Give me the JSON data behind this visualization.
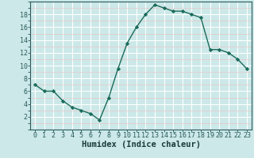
{
  "x": [
    0,
    1,
    2,
    3,
    4,
    5,
    6,
    7,
    8,
    9,
    10,
    11,
    12,
    13,
    14,
    15,
    16,
    17,
    18,
    19,
    20,
    21,
    22,
    23
  ],
  "y": [
    7,
    6,
    6,
    4.5,
    3.5,
    3,
    2.5,
    1.5,
    5,
    9.5,
    13.5,
    16,
    18,
    19.5,
    19,
    18.5,
    18.5,
    18,
    17.5,
    12.5,
    12.5,
    12,
    11,
    9.5
  ],
  "line_color": "#1a6b5a",
  "marker": "D",
  "marker_size": 2.2,
  "linewidth": 1.0,
  "bg_color": "#cce8e8",
  "grid_color_major": "#ffffff",
  "grid_color_minor": "#e8c8c8",
  "xlabel": "Humidex (Indice chaleur)",
  "xlim": [
    -0.5,
    23.5
  ],
  "ylim": [
    0,
    20
  ],
  "yticks": [
    2,
    4,
    6,
    8,
    10,
    12,
    14,
    16,
    18
  ],
  "xticks": [
    0,
    1,
    2,
    3,
    4,
    5,
    6,
    7,
    8,
    9,
    10,
    11,
    12,
    13,
    14,
    15,
    16,
    17,
    18,
    19,
    20,
    21,
    22,
    23
  ],
  "xlabel_fontsize": 7.5,
  "tick_fontsize": 6.0
}
